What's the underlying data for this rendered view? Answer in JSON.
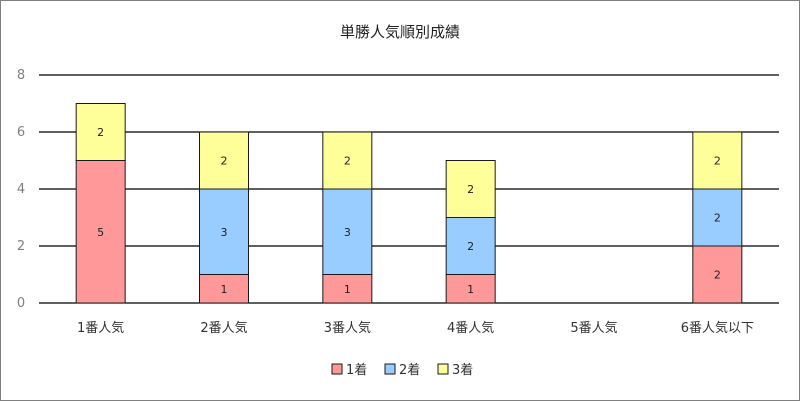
{
  "chart_data": {
    "type": "bar",
    "stacked": true,
    "title": "単勝人気順別成績",
    "categories": [
      "1番人気",
      "2番人気",
      "3番人気",
      "4番人気",
      "5番人気",
      "6番人気以下"
    ],
    "series": [
      {
        "name": "1着",
        "color": "#ff9999",
        "values": [
          5,
          1,
          1,
          1,
          0,
          2
        ]
      },
      {
        "name": "2着",
        "color": "#99ccff",
        "values": [
          0,
          3,
          3,
          2,
          0,
          2
        ]
      },
      {
        "name": "3着",
        "color": "#ffff99",
        "values": [
          2,
          2,
          2,
          2,
          0,
          2
        ]
      }
    ],
    "ylim": [
      0,
      8
    ],
    "yticks": [
      0,
      2,
      4,
      6,
      8
    ],
    "grid": true,
    "legend": "bottom"
  }
}
